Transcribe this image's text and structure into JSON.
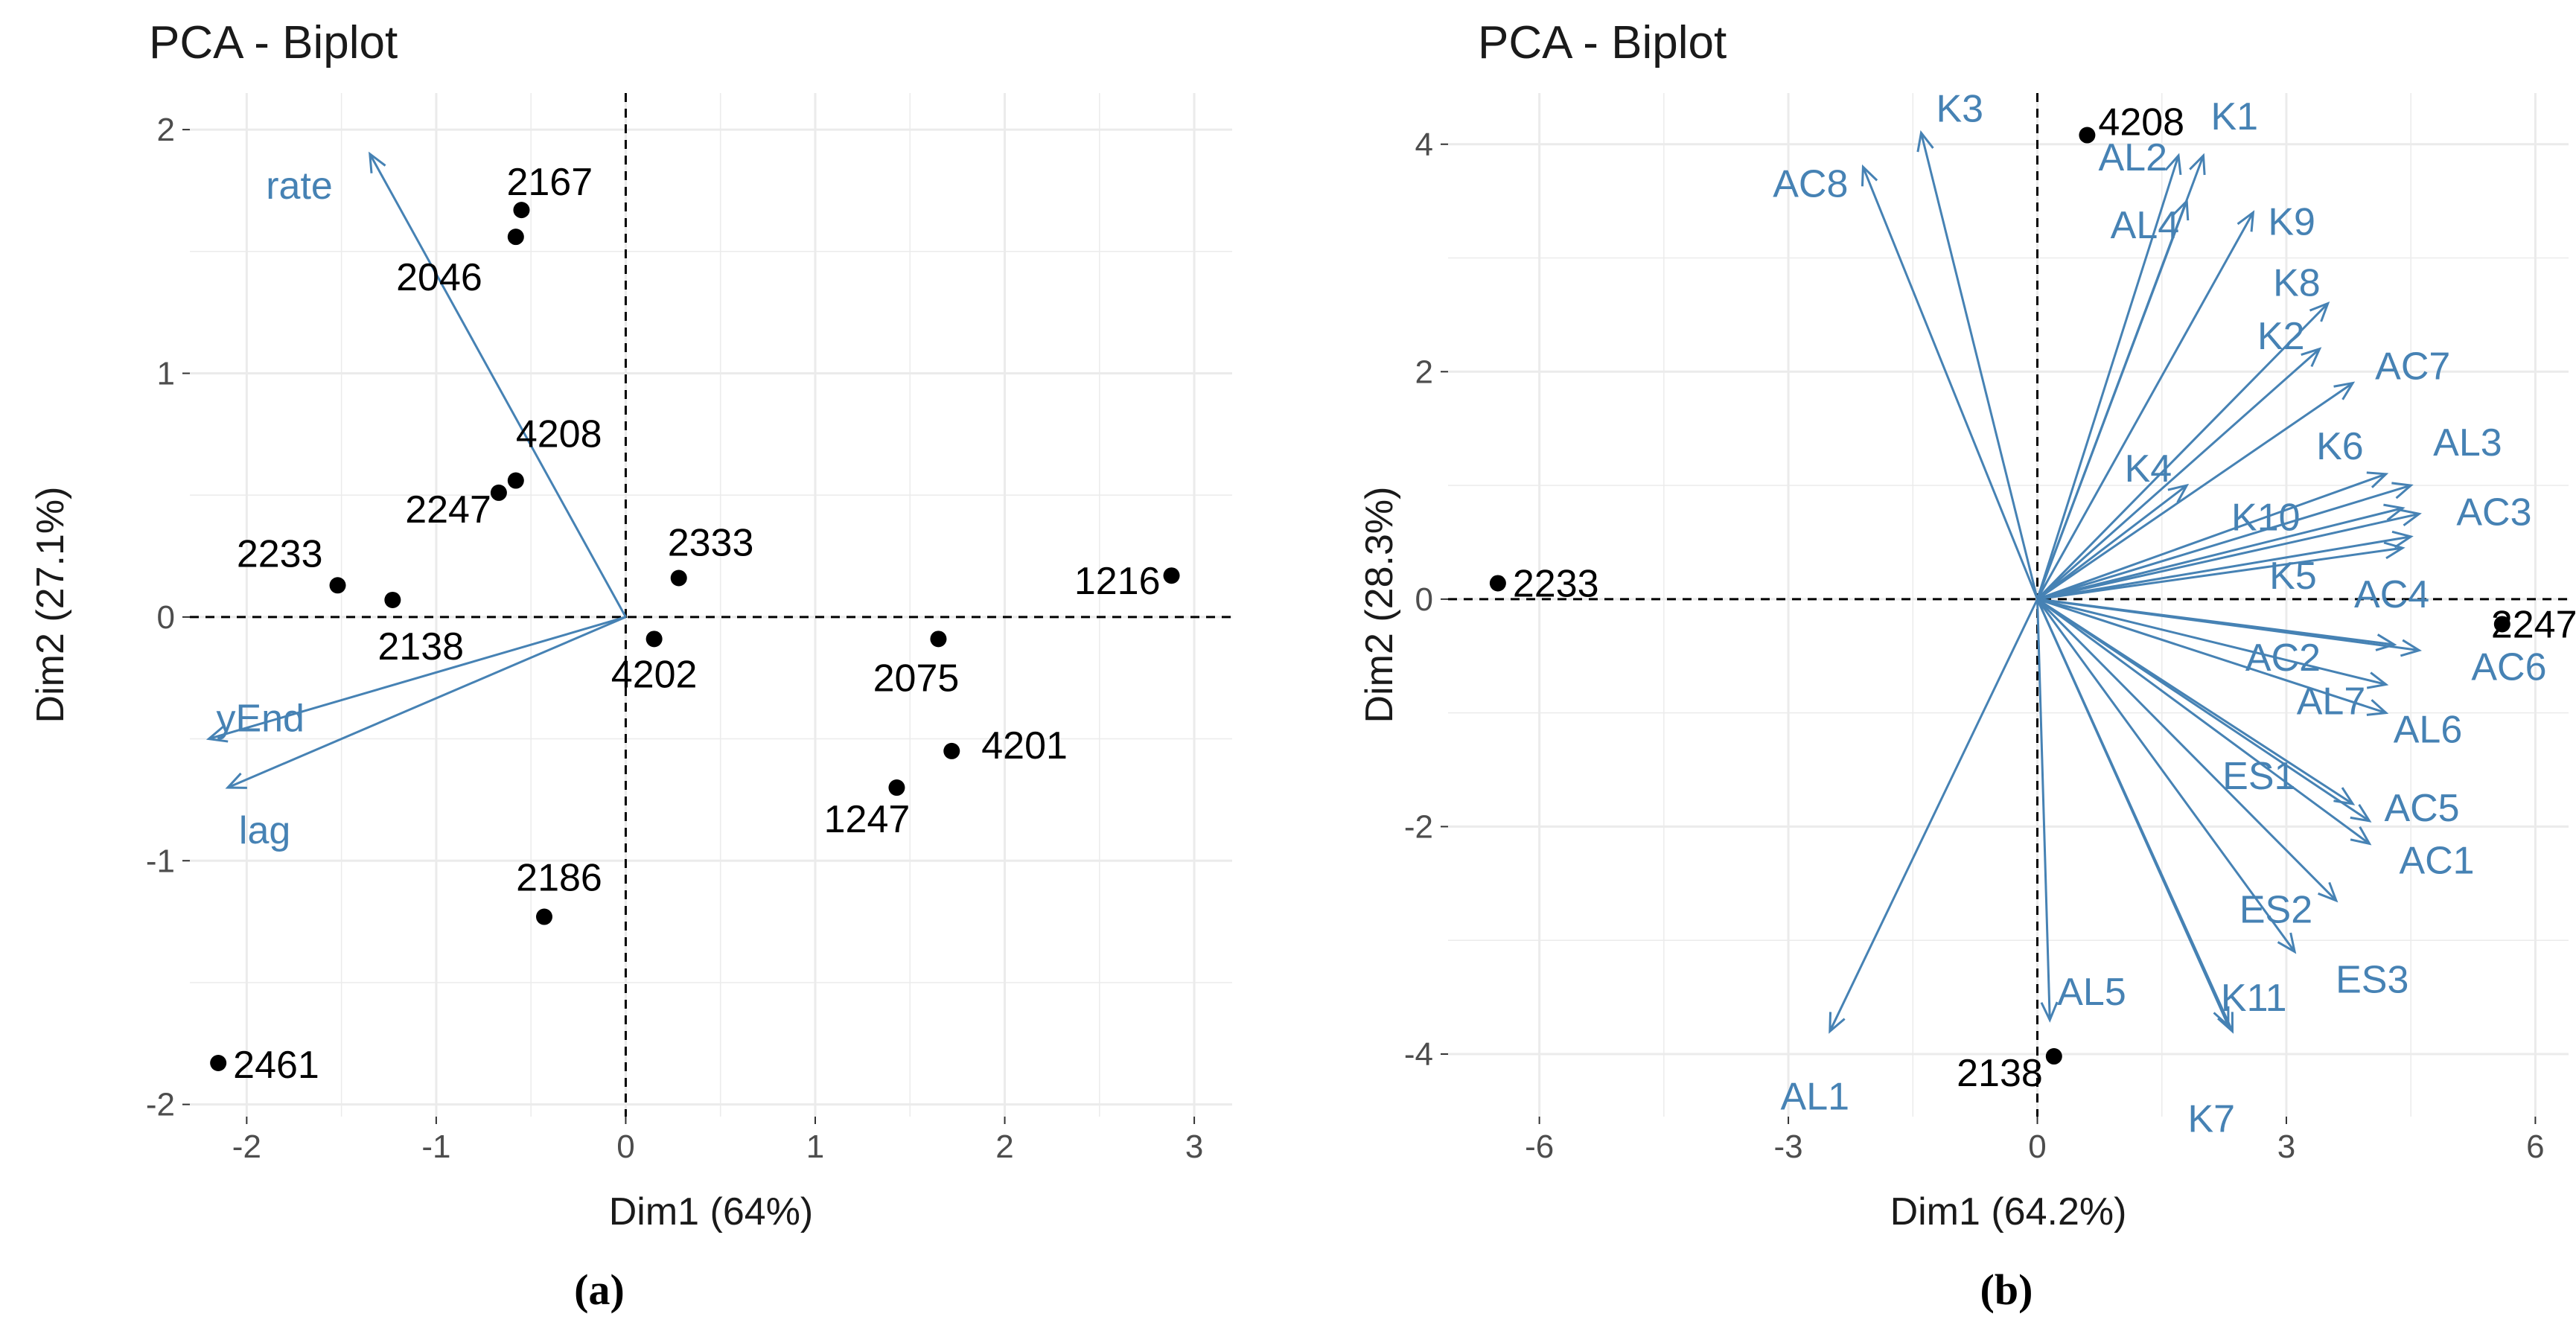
{
  "chart_data": [
    {
      "type": "scatter",
      "subtype": "pca-biplot",
      "panel": "(a)",
      "title": "PCA - Biplot",
      "xlabel": "Dim1 (64%)",
      "ylabel": "Dim2 (27.1%)",
      "xlim": [
        -2.3,
        3.2
      ],
      "ylim": [
        -2.05,
        2.15
      ],
      "xticks": [
        -2,
        -1,
        0,
        1,
        2,
        3
      ],
      "yticks": [
        -2,
        -1,
        0,
        1,
        2
      ],
      "grid": true,
      "point_color": "#000000",
      "arrow_color": "#4682b4",
      "points": [
        {
          "label": "2167",
          "x": -0.55,
          "y": 1.67
        },
        {
          "label": "2046",
          "x": -0.58,
          "y": 1.56
        },
        {
          "label": "4208",
          "x": -0.58,
          "y": 0.56
        },
        {
          "label": "2247",
          "x": -0.67,
          "y": 0.51
        },
        {
          "label": "2233",
          "x": -1.52,
          "y": 0.13
        },
        {
          "label": "2138",
          "x": -1.23,
          "y": 0.07
        },
        {
          "label": "2333",
          "x": 0.28,
          "y": 0.16
        },
        {
          "label": "4202",
          "x": 0.15,
          "y": -0.09
        },
        {
          "label": "1216",
          "x": 2.88,
          "y": 0.17
        },
        {
          "label": "2075",
          "x": 1.65,
          "y": -0.09
        },
        {
          "label": "4201",
          "x": 1.72,
          "y": -0.55
        },
        {
          "label": "1247",
          "x": 1.43,
          "y": -0.7
        },
        {
          "label": "2186",
          "x": -0.43,
          "y": -1.23
        },
        {
          "label": "2461",
          "x": -2.15,
          "y": -1.83
        }
      ],
      "arrows": [
        {
          "label": "rate",
          "x": -1.35,
          "y": 1.9
        },
        {
          "label": "yEnd",
          "x": -2.2,
          "y": -0.5
        },
        {
          "label": "lag",
          "x": -2.1,
          "y": -0.7
        }
      ]
    },
    {
      "type": "scatter",
      "subtype": "pca-biplot",
      "panel": "(b)",
      "title": "PCA - Biplot",
      "xlabel": "Dim1 (64.2%)",
      "ylabel": "Dim2 (28.3%)",
      "xlim": [
        -7.1,
        6.4
      ],
      "ylim": [
        -4.55,
        4.45
      ],
      "xticks": [
        -6,
        -3,
        0,
        3,
        6
      ],
      "yticks": [
        -4,
        -2,
        0,
        2,
        4
      ],
      "grid": true,
      "point_color": "#000000",
      "arrow_color": "#4682b4",
      "points": [
        {
          "label": "4208",
          "x": 0.6,
          "y": 4.08
        },
        {
          "label": "2233",
          "x": -6.5,
          "y": 0.14
        },
        {
          "label": "2247",
          "x": 5.6,
          "y": -0.22
        },
        {
          "label": "2138",
          "x": 0.2,
          "y": -4.02
        }
      ],
      "arrows": [
        {
          "label": "K3",
          "x": -1.4,
          "y": 4.1
        },
        {
          "label": "AC8",
          "x": -2.1,
          "y": 3.8
        },
        {
          "label": "AL2",
          "x": 1.7,
          "y": 3.9
        },
        {
          "label": "K1",
          "x": 2.0,
          "y": 3.9
        },
        {
          "label": "AL4",
          "x": 1.8,
          "y": 3.5
        },
        {
          "label": "K9",
          "x": 2.6,
          "y": 3.4
        },
        {
          "label": "K8",
          "x": 3.5,
          "y": 2.6
        },
        {
          "label": "K2",
          "x": 3.4,
          "y": 2.2
        },
        {
          "label": "AC7",
          "x": 3.8,
          "y": 1.9
        },
        {
          "label": "K4",
          "x": 1.8,
          "y": 1.0
        },
        {
          "label": "K6",
          "x": 4.2,
          "y": 1.1
        },
        {
          "label": "AL3",
          "x": 4.5,
          "y": 1.0
        },
        {
          "label": "K10",
          "x": 4.4,
          "y": 0.8
        },
        {
          "label": "AC3",
          "x": 4.6,
          "y": 0.75
        },
        {
          "label": "K5",
          "x": 4.5,
          "y": 0.55
        },
        {
          "label": "AC4",
          "x": 4.4,
          "y": 0.45
        },
        {
          "label": "AC2",
          "x": 4.3,
          "y": -0.4
        },
        {
          "label": "AC6",
          "x": 4.6,
          "y": -0.45
        },
        {
          "label": "AL7",
          "x": 4.2,
          "y": -0.75
        },
        {
          "label": "AL6",
          "x": 4.2,
          "y": -1.0
        },
        {
          "label": "ES1",
          "x": 3.8,
          "y": -1.8
        },
        {
          "label": "AC5",
          "x": 4.0,
          "y": -1.95
        },
        {
          "label": "AC1",
          "x": 4.0,
          "y": -2.15
        },
        {
          "label": "ES2",
          "x": 3.6,
          "y": -2.65
        },
        {
          "label": "ES3",
          "x": 3.1,
          "y": -3.1
        },
        {
          "label": "K11",
          "x": 2.3,
          "y": -3.75
        },
        {
          "label": "AL5",
          "x": 0.15,
          "y": -3.7
        },
        {
          "label": "K7",
          "x": 2.35,
          "y": -3.8
        },
        {
          "label": "AL1",
          "x": -2.5,
          "y": -3.8
        }
      ]
    }
  ],
  "captions": [
    "(a)",
    "(b)"
  ]
}
